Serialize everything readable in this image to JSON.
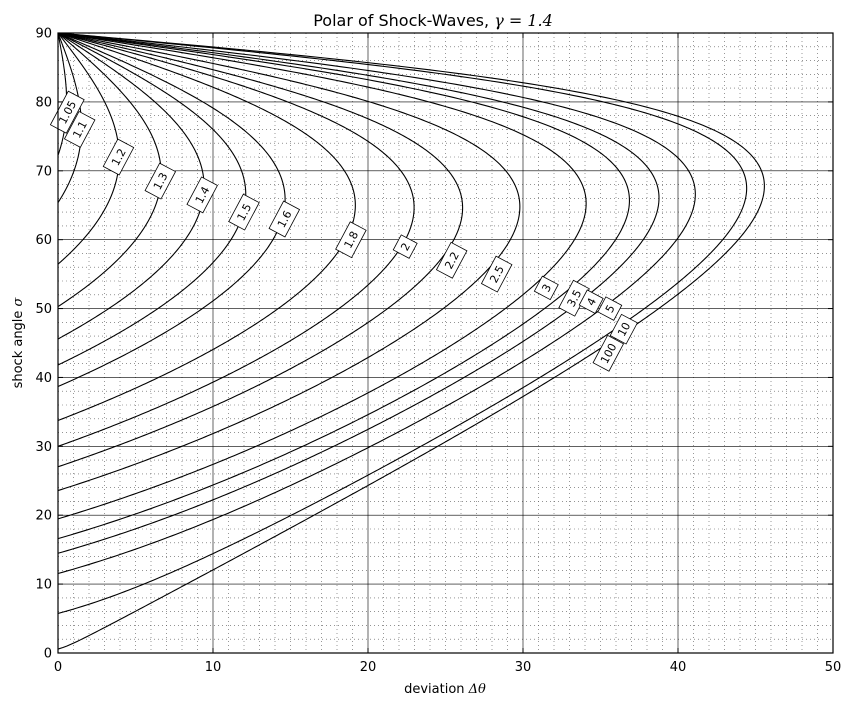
{
  "chart_data": {
    "type": "line",
    "title": "Polar of Shock-Waves, γ = 1.4",
    "title_main": "Polar of Shock-Waves, ",
    "title_math": "γ = 1.4",
    "xlabel": "deviation Δθ",
    "xlabel_text": "deviation ",
    "xlabel_math": "Δθ",
    "ylabel": "shock angle σ",
    "ylabel_text": "shock angle ",
    "ylabel_math": "σ",
    "xlim": [
      0,
      50
    ],
    "ylim": [
      0,
      90
    ],
    "xticks": [
      0,
      10,
      20,
      30,
      40,
      50
    ],
    "yticks": [
      0,
      10,
      20,
      30,
      40,
      50,
      60,
      70,
      80,
      90
    ],
    "grid": true,
    "minor_grid": true,
    "gamma": 1.4,
    "series": [
      {
        "name": "1.05",
        "mach": 1.05,
        "label_x": 0.6,
        "label_y": 78.5
      },
      {
        "name": "1.1",
        "mach": 1.1,
        "label_x": 1.4,
        "label_y": 76.0
      },
      {
        "name": "1.2",
        "mach": 1.2,
        "label_x": 3.9,
        "label_y": 72.0
      },
      {
        "name": "1.3",
        "mach": 1.3,
        "label_x": 6.6,
        "label_y": 68.5
      },
      {
        "name": "1.4",
        "mach": 1.4,
        "label_x": 9.3,
        "label_y": 66.5
      },
      {
        "name": "1.5",
        "mach": 1.5,
        "label_x": 12.0,
        "label_y": 64.0
      },
      {
        "name": "1.6",
        "mach": 1.6,
        "label_x": 14.6,
        "label_y": 63.0
      },
      {
        "name": "1.8",
        "mach": 1.8,
        "label_x": 18.9,
        "label_y": 60.0
      },
      {
        "name": "2",
        "mach": 2.0,
        "label_x": 22.4,
        "label_y": 59.0
      },
      {
        "name": "2.2",
        "mach": 2.2,
        "label_x": 25.4,
        "label_y": 57.0
      },
      {
        "name": "2.5",
        "mach": 2.5,
        "label_x": 28.3,
        "label_y": 55.0
      },
      {
        "name": "3",
        "mach": 3.0,
        "label_x": 31.5,
        "label_y": 53.0
      },
      {
        "name": "3.5",
        "mach": 3.5,
        "label_x": 33.3,
        "label_y": 51.5
      },
      {
        "name": "4",
        "mach": 4.0,
        "label_x": 34.4,
        "label_y": 51.0
      },
      {
        "name": "5",
        "mach": 5.0,
        "label_x": 35.6,
        "label_y": 50.0
      },
      {
        "name": "10",
        "mach": 10.0,
        "label_x": 36.5,
        "label_y": 47.0
      },
      {
        "name": "100",
        "mach": 100.0,
        "label_x": 35.5,
        "label_y": 43.5
      }
    ]
  }
}
